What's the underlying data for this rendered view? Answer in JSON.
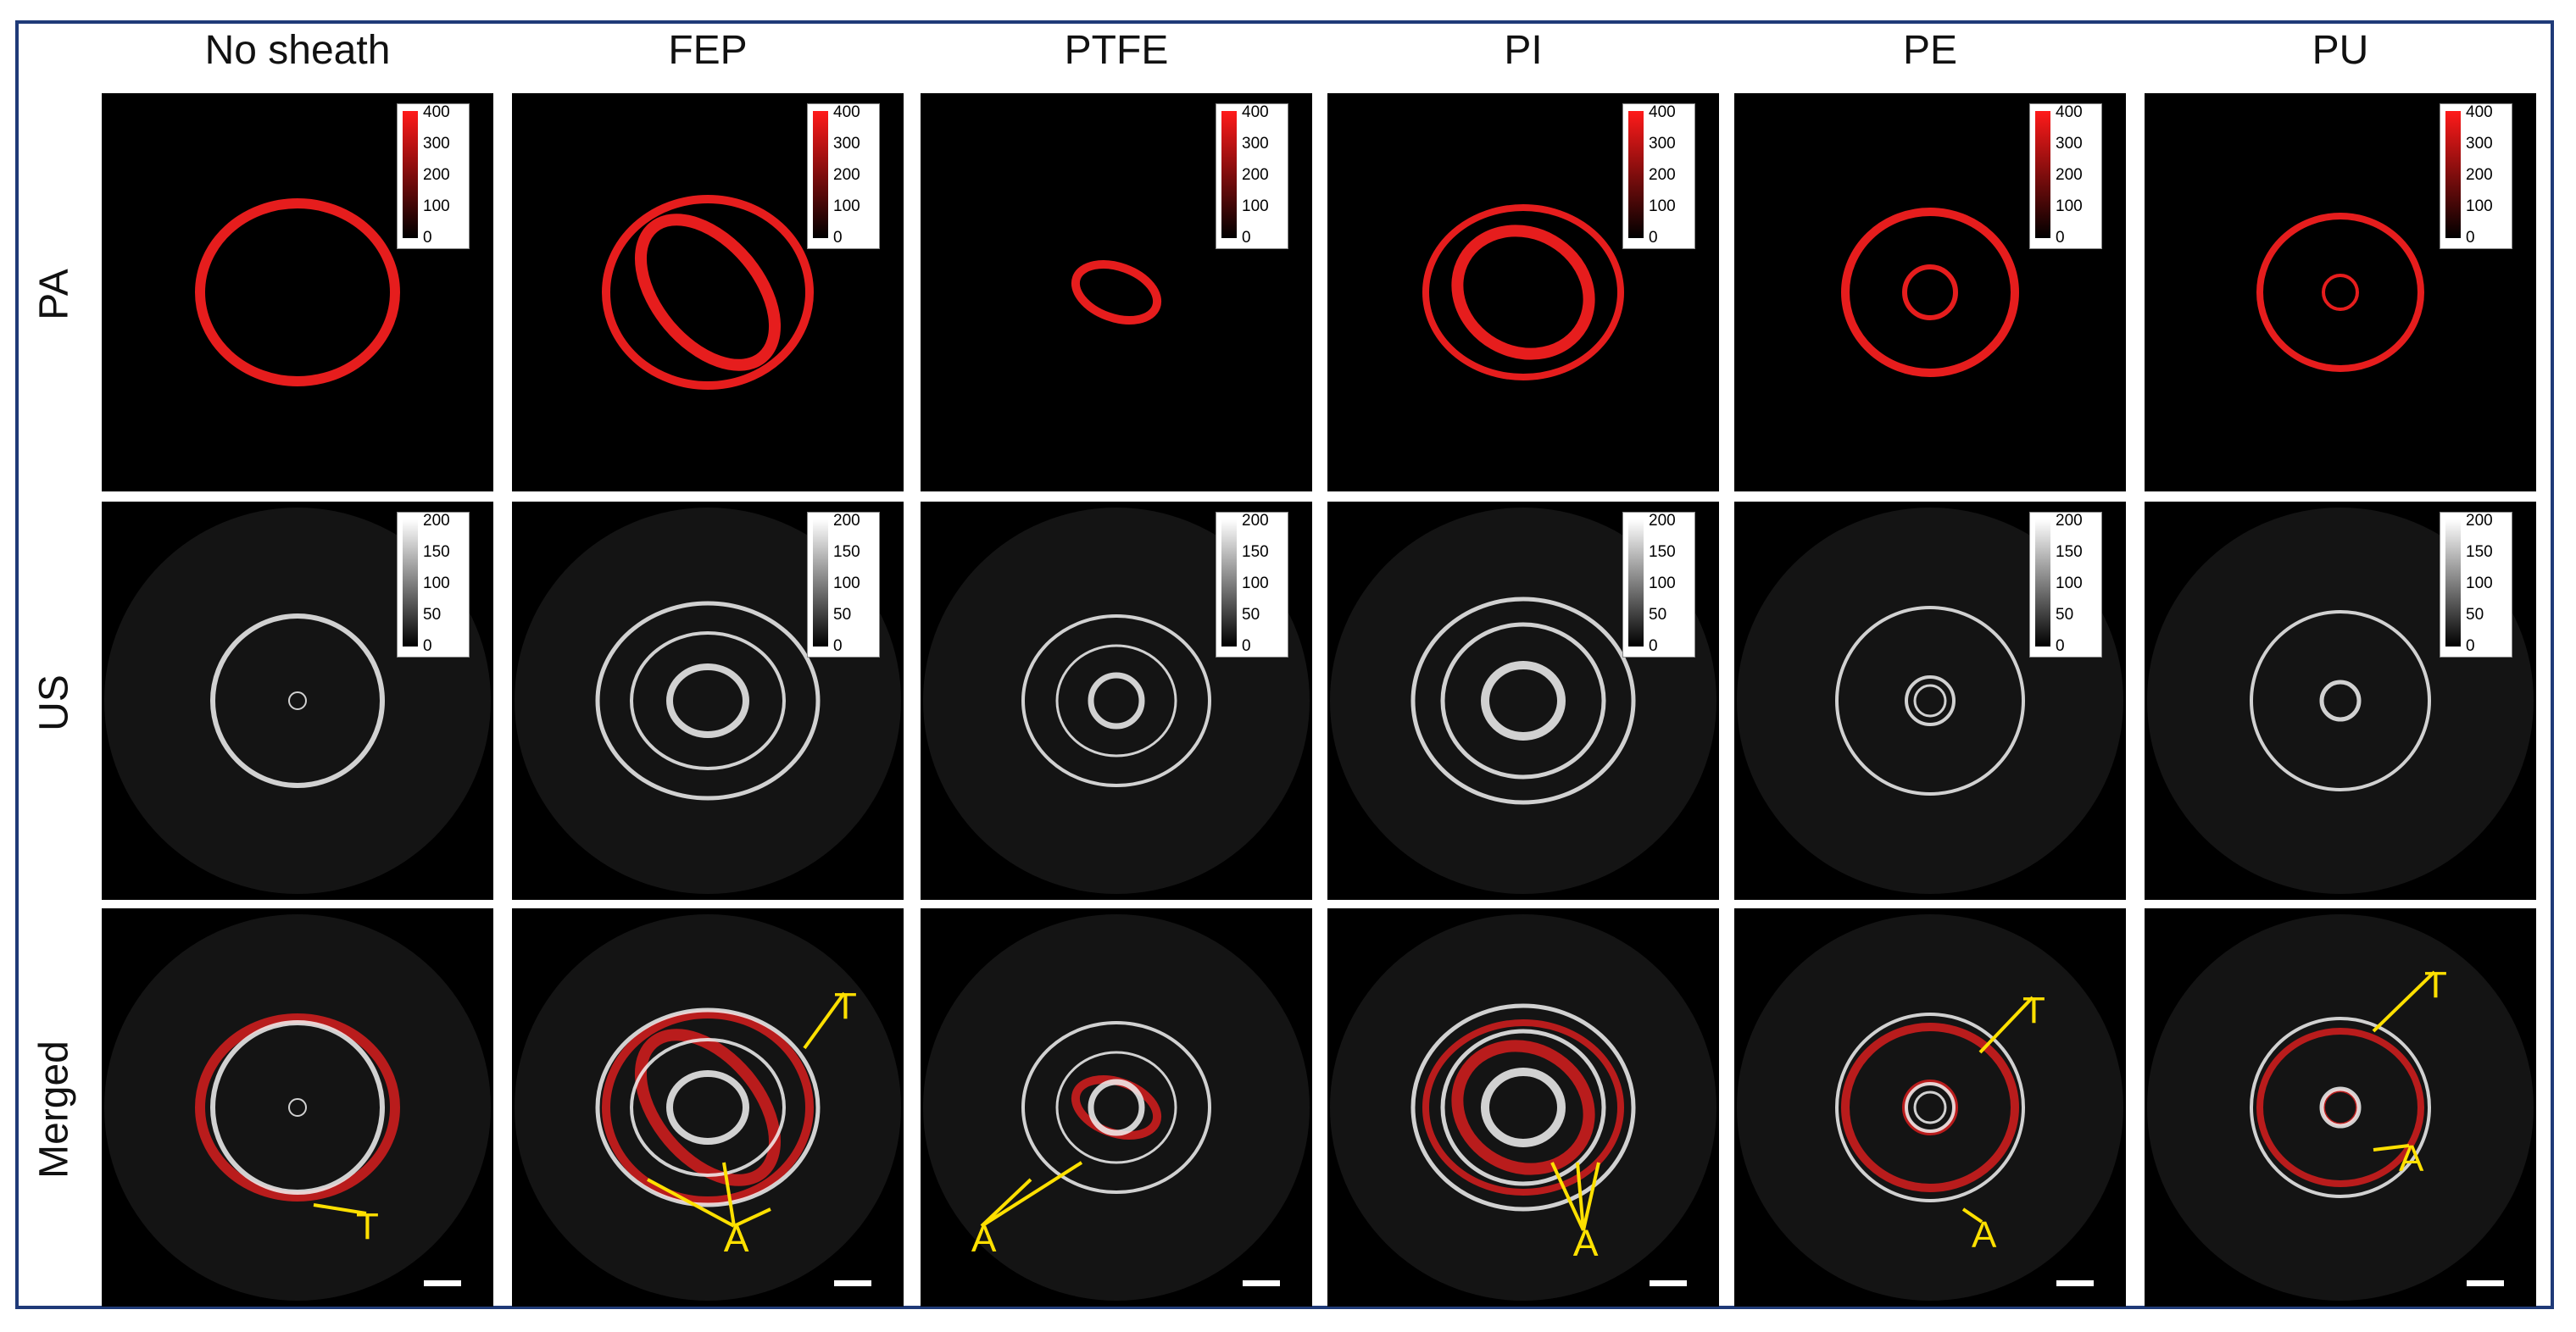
{
  "columns": [
    "No sheath",
    "FEP",
    "PTFE",
    "PI",
    "PE",
    "PU"
  ],
  "rows": [
    "PA",
    "US",
    "Merged"
  ],
  "colorbars": {
    "pa": {
      "ticks": [
        "400",
        "300",
        "200",
        "100",
        "0"
      ],
      "colormap": "black-to-red"
    },
    "us": {
      "ticks": [
        "200",
        "150",
        "100",
        "50",
        "0"
      ],
      "colormap": "black-to-white"
    }
  },
  "annotation_labels": {
    "tube": "T",
    "artifact": "A"
  },
  "colors": {
    "frame": "#1f3a78",
    "pa_signal": "#ff2020",
    "annotation": "#ffe000"
  }
}
